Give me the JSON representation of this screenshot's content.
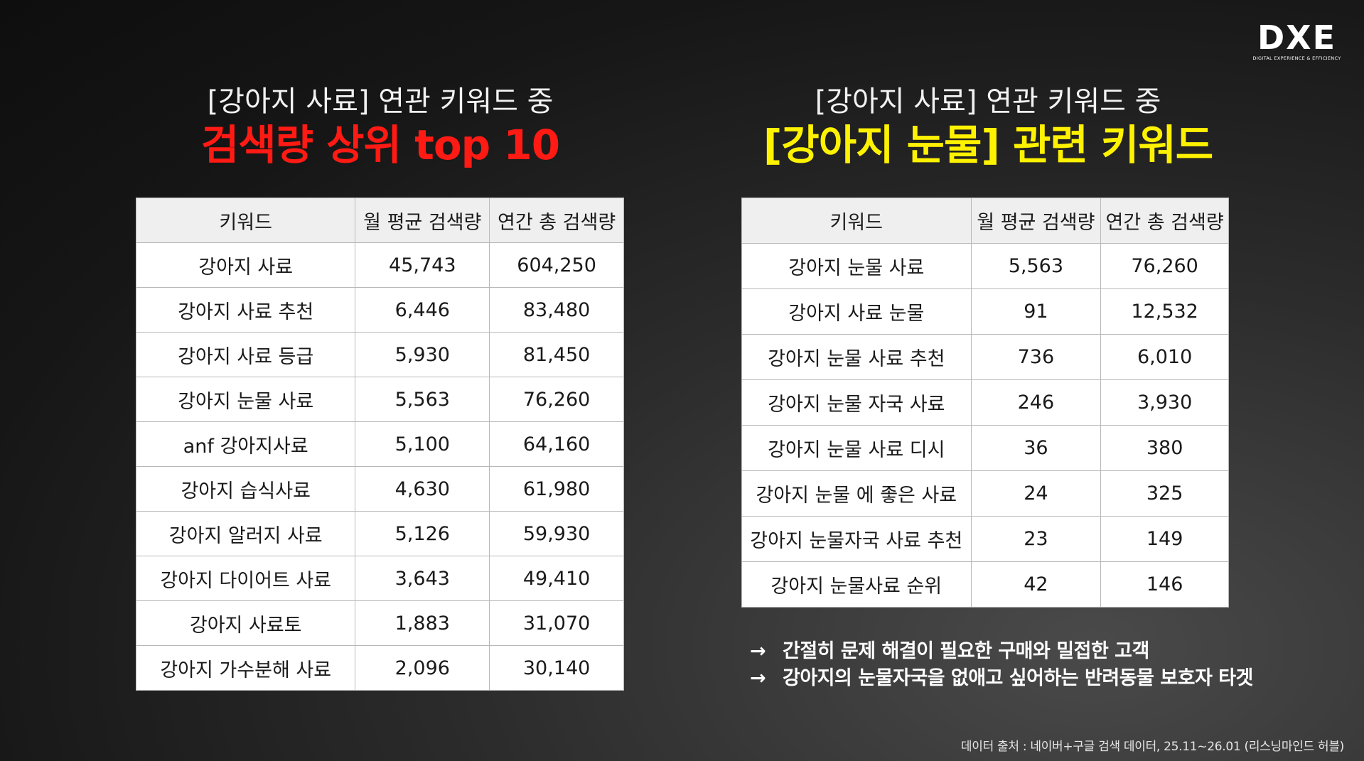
{
  "logo": {
    "mark": "DXE",
    "subtitle": "DIGITAL EXPERIENCE & EFFICIENCY"
  },
  "left": {
    "title_line1": "[강아지 사료] 연관 키워드 중",
    "title_line2": "검색량 상위 top 10",
    "headers": [
      "키워드",
      "월 평균 검색량",
      "연간 총 검색량"
    ],
    "rows": [
      [
        "강아지 사료",
        "45,743",
        "604,250"
      ],
      [
        "강아지 사료 추천",
        "6,446",
        "83,480"
      ],
      [
        "강아지 사료 등급",
        "5,930",
        "81,450"
      ],
      [
        "강아지 눈물 사료",
        "5,563",
        "76,260"
      ],
      [
        "anf 강아지사료",
        "5,100",
        "64,160"
      ],
      [
        "강아지 습식사료",
        "4,630",
        "61,980"
      ],
      [
        "강아지 알러지 사료",
        "5,126",
        "59,930"
      ],
      [
        "강아지 다이어트 사료",
        "3,643",
        "49,410"
      ],
      [
        "강아지 사료토",
        "1,883",
        "31,070"
      ],
      [
        "강아지 가수분해 사료",
        "2,096",
        "30,140"
      ]
    ]
  },
  "right": {
    "title_line1": "[강아지 사료] 연관 키워드 중",
    "title_line2": "[강아지 눈물] 관련 키워드",
    "headers": [
      "키워드",
      "월 평균 검색량",
      "연간 총 검색량"
    ],
    "rows": [
      [
        "강아지 눈물 사료",
        "5,563",
        "76,260"
      ],
      [
        "강아지 사료 눈물",
        "91",
        "12,532"
      ],
      [
        "강아지 눈물 사료 추천",
        "736",
        "6,010"
      ],
      [
        "강아지 눈물 자국 사료",
        "246",
        "3,930"
      ],
      [
        "강아지 눈물 사료 디시",
        "36",
        "380"
      ],
      [
        "강아지 눈물 에 좋은 사료",
        "24",
        "325"
      ],
      [
        "강아지 눈물자국 사료 추천",
        "23",
        "149"
      ],
      [
        "강아지 눈물사료 순위",
        "42",
        "146"
      ]
    ]
  },
  "notes": [
    "간절히 문제 해결이 필요한 구매와 밀접한 고객",
    "강아지의 눈물자국을 없애고 싶어하는 반려동물 보호자 타겟"
  ],
  "note_icon": "arrow-right-icon",
  "source": "데이터 출처 : 네이버+구글 검색 데이터, 25.11~26.01 (리스닝마인드 허블)",
  "colors": {
    "highlight_red": "#ff1a14",
    "highlight_yellow": "#fff200"
  }
}
